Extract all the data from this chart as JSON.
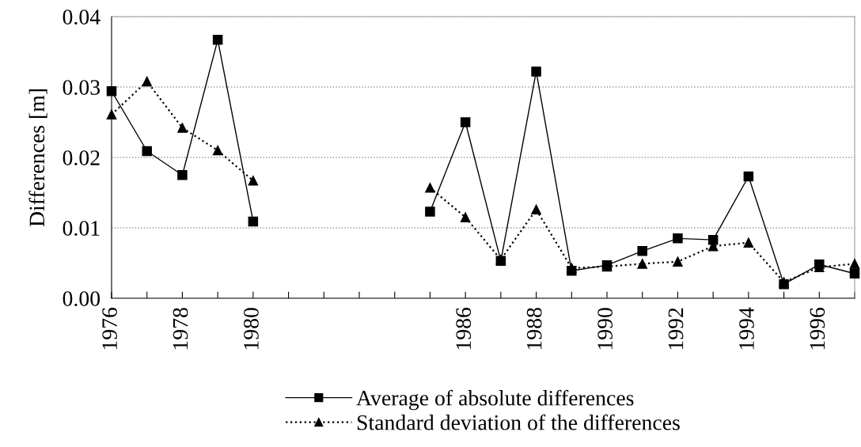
{
  "chart_data": {
    "type": "line",
    "ylabel": "Differences [m]",
    "x": [
      1976,
      1977,
      1978,
      1979,
      1980,
      1981,
      1982,
      1983,
      1984,
      1985,
      1986,
      1987,
      1988,
      1989,
      1990,
      1991,
      1992,
      1993,
      1994,
      1995,
      1996,
      1997
    ],
    "series": [
      {
        "name": "Average of absolute differences",
        "color": "#000000",
        "marker": "square",
        "line_style": "solid",
        "values": [
          0.0294,
          0.0209,
          0.0175,
          0.0367,
          0.0109,
          null,
          null,
          null,
          null,
          0.0123,
          0.025,
          0.0053,
          0.0322,
          0.0039,
          0.0047,
          0.0067,
          0.0085,
          0.0083,
          0.0173,
          0.002,
          0.0048,
          0.0035
        ]
      },
      {
        "name": "Standard deviation of the differences",
        "color": "#000000",
        "marker": "triangle",
        "line_style": "dotted",
        "values": [
          0.0261,
          0.0308,
          0.0242,
          0.021,
          0.0167,
          null,
          null,
          null,
          null,
          0.0157,
          0.0115,
          0.0055,
          0.0126,
          0.0043,
          0.0045,
          0.0049,
          0.0052,
          0.0074,
          0.0079,
          0.0023,
          0.0044,
          0.0049
        ]
      }
    ],
    "xlim": [
      1976,
      1997
    ],
    "xticks": [
      1976,
      {
        "value": 1977,
        "label": null
      },
      1978,
      {
        "value": 1979,
        "label": null
      },
      1980,
      {
        "value": 1981,
        "label": null
      },
      {
        "value": 1982,
        "label": null
      },
      {
        "value": 1983,
        "label": null
      },
      {
        "value": 1984,
        "label": null
      },
      {
        "value": 1985,
        "label": null
      },
      1986,
      {
        "value": 1987,
        "label": null
      },
      1988,
      {
        "value": 1989,
        "label": null
      },
      1990,
      {
        "value": 1991,
        "label": null
      },
      1992,
      {
        "value": 1993,
        "label": null
      },
      1994,
      {
        "value": 1995,
        "label": null
      },
      1996,
      {
        "value": 1997,
        "label": null
      }
    ],
    "ylim": [
      0,
      0.04
    ],
    "yticks": [
      {
        "value": 0,
        "label": "0.00"
      },
      0.01,
      0.02,
      0.03,
      0.04
    ],
    "grid": "y",
    "legend": "bottom"
  }
}
